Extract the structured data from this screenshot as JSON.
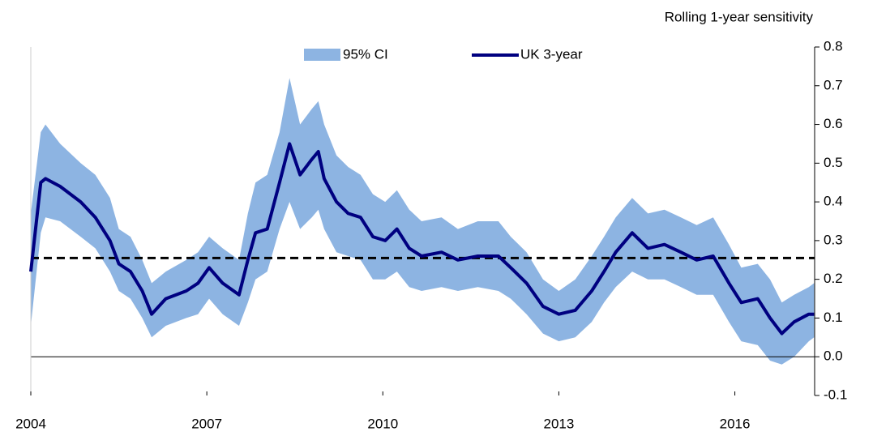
{
  "chart_data": {
    "type": "line",
    "y_axis_label": "Rolling 1-year sensitivity",
    "x": [
      2004.0,
      2004.17,
      2004.25,
      2004.5,
      2004.85,
      2005.1,
      2005.35,
      2005.5,
      2005.7,
      2005.9,
      2006.06,
      2006.3,
      2006.65,
      2006.85,
      2007.04,
      2007.27,
      2007.55,
      2007.7,
      2007.83,
      2008.03,
      2008.24,
      2008.41,
      2008.59,
      2008.79,
      2008.9,
      2009.0,
      2009.21,
      2009.41,
      2009.62,
      2009.83,
      2010.04,
      2010.24,
      2010.45,
      2010.66,
      2011.0,
      2011.28,
      2011.62,
      2011.97,
      2012.18,
      2012.45,
      2012.73,
      2013.0,
      2013.28,
      2013.56,
      2013.77,
      2013.97,
      2014.25,
      2014.52,
      2014.8,
      2015.08,
      2015.35,
      2015.63,
      2015.9,
      2016.11,
      2016.39,
      2016.6,
      2016.8,
      2017.01,
      2017.26,
      2017.35
    ],
    "series": [
      {
        "name": "95% CI",
        "color": "#8db4e2",
        "lower": [
          0.08,
          0.32,
          0.36,
          0.35,
          0.31,
          0.28,
          0.22,
          0.17,
          0.15,
          0.1,
          0.05,
          0.08,
          0.1,
          0.11,
          0.15,
          0.11,
          0.08,
          0.14,
          0.2,
          0.22,
          0.33,
          0.4,
          0.33,
          0.36,
          0.38,
          0.33,
          0.27,
          0.26,
          0.25,
          0.2,
          0.2,
          0.22,
          0.18,
          0.17,
          0.18,
          0.17,
          0.18,
          0.17,
          0.15,
          0.11,
          0.06,
          0.04,
          0.05,
          0.09,
          0.14,
          0.18,
          0.22,
          0.2,
          0.2,
          0.18,
          0.16,
          0.16,
          0.09,
          0.04,
          0.03,
          -0.01,
          -0.02,
          0.0,
          0.04,
          0.05
        ],
        "upper": [
          0.37,
          0.58,
          0.6,
          0.55,
          0.5,
          0.47,
          0.41,
          0.33,
          0.31,
          0.25,
          0.19,
          0.22,
          0.25,
          0.27,
          0.31,
          0.28,
          0.25,
          0.37,
          0.45,
          0.47,
          0.58,
          0.72,
          0.6,
          0.64,
          0.66,
          0.6,
          0.52,
          0.49,
          0.47,
          0.42,
          0.4,
          0.43,
          0.38,
          0.35,
          0.36,
          0.33,
          0.35,
          0.35,
          0.31,
          0.27,
          0.2,
          0.17,
          0.2,
          0.26,
          0.31,
          0.36,
          0.41,
          0.37,
          0.38,
          0.36,
          0.34,
          0.36,
          0.29,
          0.23,
          0.24,
          0.2,
          0.14,
          0.16,
          0.18,
          0.19
        ]
      },
      {
        "name": "UK 3-year",
        "color": "#000080",
        "values": [
          0.22,
          0.45,
          0.46,
          0.44,
          0.4,
          0.36,
          0.3,
          0.24,
          0.22,
          0.17,
          0.11,
          0.15,
          0.17,
          0.19,
          0.23,
          0.19,
          0.16,
          0.25,
          0.32,
          0.33,
          0.45,
          0.55,
          0.47,
          0.51,
          0.53,
          0.46,
          0.4,
          0.37,
          0.36,
          0.31,
          0.3,
          0.33,
          0.28,
          0.26,
          0.27,
          0.25,
          0.26,
          0.26,
          0.23,
          0.19,
          0.13,
          0.11,
          0.12,
          0.17,
          0.22,
          0.27,
          0.32,
          0.28,
          0.29,
          0.27,
          0.25,
          0.26,
          0.19,
          0.14,
          0.15,
          0.1,
          0.06,
          0.09,
          0.11,
          0.11
        ]
      }
    ],
    "reference_line": 0.255,
    "xlim": [
      2004,
      2017.36
    ],
    "xticks": [
      2004,
      2007,
      2010,
      2013,
      2016
    ],
    "ylim": [
      -0.1,
      0.8
    ],
    "yticks": [
      -0.1,
      {
        "value": 0,
        "label": "0.0"
      },
      0.1,
      0.2,
      0.3,
      0.4,
      0.5,
      0.6,
      0.7,
      0.8
    ]
  }
}
